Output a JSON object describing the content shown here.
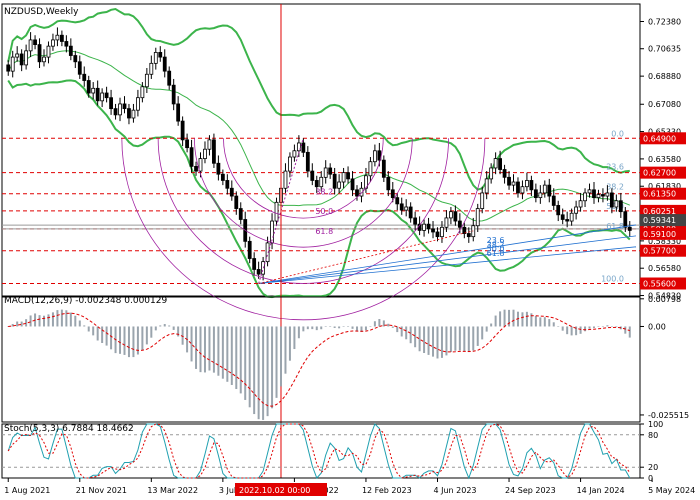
{
  "chart_data": [
    {
      "type": "candlestick",
      "title": "NZDUSD,Weekly",
      "ylim": [
        0.548,
        0.735
      ],
      "y_ticks": [
        "0.72380",
        "0.70635",
        "0.68880",
        "0.67080",
        "0.65330",
        "0.63580",
        "0.61830",
        "0.60080",
        "0.58330",
        "0.56580",
        "0.54830"
      ],
      "y_tick_values": [
        0.7238,
        0.70635,
        0.6888,
        0.6708,
        0.6533,
        0.6358,
        0.6183,
        0.6008,
        0.5833,
        0.5658,
        0.5483
      ],
      "x_ticks": [
        "1 Aug 2021",
        "21 Nov 2021",
        "13 Mar 2022",
        "3 Jul 2022",
        "",
        "12 Feb 2023",
        "4 Jun 2023",
        "24 Sep 2023",
        "14 Jan 2024",
        "5 May 2024"
      ],
      "x_tick_index": [
        0,
        16,
        32,
        48,
        64,
        80,
        96,
        112,
        128,
        144
      ],
      "x_tick_hidden_text": "2022",
      "vertical_marker": {
        "label": "2022.10.02 00:00",
        "index": 61
      },
      "price_levels": [
        {
          "label": "0.64900",
          "value": 0.649,
          "color": "#e00000"
        },
        {
          "label": "0.62700",
          "value": 0.627,
          "color": "#e00000"
        },
        {
          "label": "0.61350",
          "value": 0.6135,
          "color": "#e00000"
        },
        {
          "label": "0.60251",
          "value": 0.60251,
          "color": "#e00000"
        },
        {
          "label": "0.59100",
          "value": 0.591,
          "color": "#e00000"
        },
        {
          "label": "0.57700",
          "value": 0.577,
          "color": "#e00000"
        },
        {
          "label": "0.55600",
          "value": 0.556,
          "color": "#e00000"
        }
      ],
      "fibo_levels": [
        {
          "label": "0.0",
          "value": 0.649
        },
        {
          "label": "23.6",
          "value": 0.6277
        },
        {
          "label": "38.2",
          "value": 0.6148
        },
        {
          "label": "50.0",
          "value": 0.6025
        },
        {
          "label": "61.8",
          "value": 0.5897
        },
        {
          "label": "100.0",
          "value": 0.556
        }
      ],
      "fan_labels": [
        "38.2",
        "50.0",
        "61.8",
        "23.6",
        "38.2",
        "50.0",
        "61.8"
      ],
      "closes": [
        0.692,
        0.701,
        0.703,
        0.696,
        0.705,
        0.712,
        0.709,
        0.698,
        0.701,
        0.708,
        0.712,
        0.715,
        0.711,
        0.708,
        0.702,
        0.698,
        0.69,
        0.686,
        0.678,
        0.681,
        0.673,
        0.678,
        0.675,
        0.668,
        0.664,
        0.671,
        0.668,
        0.662,
        0.667,
        0.675,
        0.682,
        0.69,
        0.697,
        0.704,
        0.701,
        0.692,
        0.683,
        0.671,
        0.66,
        0.648,
        0.643,
        0.631,
        0.628,
        0.636,
        0.642,
        0.648,
        0.633,
        0.626,
        0.622,
        0.617,
        0.612,
        0.604,
        0.597,
        0.583,
        0.572,
        0.565,
        0.562,
        0.57,
        0.582,
        0.596,
        0.608,
        0.617,
        0.628,
        0.637,
        0.641,
        0.646,
        0.64,
        0.628,
        0.622,
        0.618,
        0.624,
        0.63,
        0.626,
        0.617,
        0.621,
        0.627,
        0.623,
        0.616,
        0.612,
        0.617,
        0.625,
        0.634,
        0.641,
        0.635,
        0.624,
        0.616,
        0.611,
        0.607,
        0.603,
        0.605,
        0.598,
        0.594,
        0.59,
        0.594,
        0.591,
        0.589,
        0.586,
        0.592,
        0.598,
        0.602,
        0.596,
        0.592,
        0.588,
        0.586,
        0.593,
        0.604,
        0.614,
        0.623,
        0.63,
        0.636,
        0.629,
        0.624,
        0.619,
        0.621,
        0.614,
        0.618,
        0.622,
        0.616,
        0.611,
        0.614,
        0.619,
        0.612,
        0.606,
        0.6,
        0.597,
        0.596,
        0.601,
        0.605,
        0.609,
        0.614,
        0.616,
        0.611,
        0.613,
        0.612,
        0.614,
        0.605,
        0.609,
        0.602,
        0.592,
        0.59
      ],
      "bollinger_period": 20,
      "bollinger_color": "#3cb44b",
      "axis_tags_dark": [
        "0.59341",
        "0.59100"
      ]
    },
    {
      "type": "histogram",
      "title": "MACD(12,26,9) -0.002348 0.000129",
      "ylim": [
        -0.02755,
        0.0085
      ],
      "y_ticks": [
        "0.00798",
        "0.00",
        "-0.025515"
      ],
      "y_tick_values": [
        0.00798,
        0.0,
        -0.025515
      ]
    },
    {
      "type": "line",
      "title": "Stoch(5,3,3) 6.7884 18.4662",
      "ylim": [
        0,
        100
      ],
      "y_ticks": [
        "100",
        "80",
        "20",
        "0"
      ],
      "y_tick_values": [
        100,
        80,
        20,
        0
      ]
    }
  ]
}
